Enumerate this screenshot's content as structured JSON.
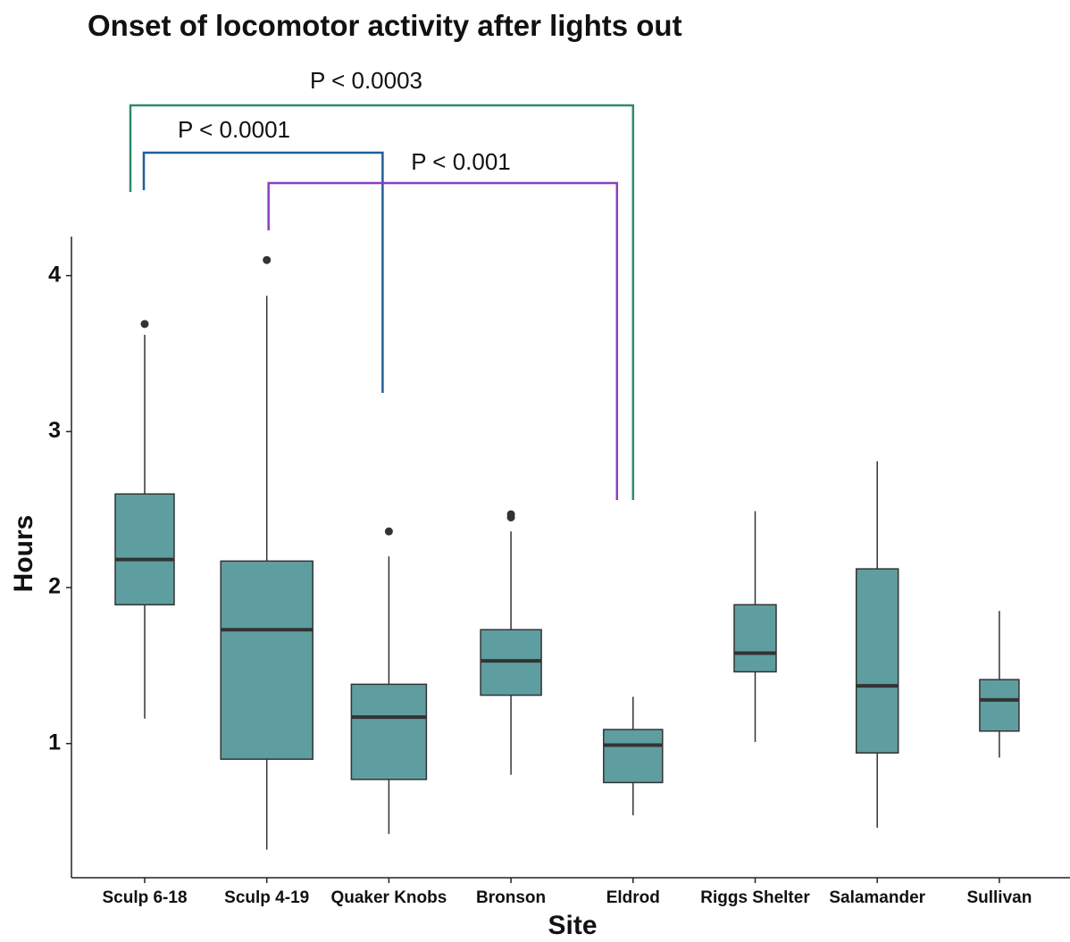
{
  "chart_data": {
    "type": "box",
    "title": "Onset of locomotor activity after lights out",
    "x_label": "Site",
    "y_label": "Hours",
    "categories": [
      "Sculp 6-18",
      "Sculp 4-19",
      "Quaker Knobs",
      "Bronson",
      "Eldrod",
      "Riggs Shelter",
      "Salamander",
      "Sullivan"
    ],
    "boxes": [
      {
        "min": 1.16,
        "q1": 1.89,
        "median": 2.18,
        "q3": 2.6,
        "max": 3.62,
        "outliers": [
          3.69
        ]
      },
      {
        "min": 0.32,
        "q1": 0.9,
        "median": 1.73,
        "q3": 2.17,
        "max": 3.87,
        "outliers": [
          4.1
        ]
      },
      {
        "min": 0.42,
        "q1": 0.77,
        "median": 1.17,
        "q3": 1.38,
        "max": 2.2,
        "outliers": [
          2.36
        ]
      },
      {
        "min": 0.8,
        "q1": 1.31,
        "median": 1.53,
        "q3": 1.73,
        "max": 2.36,
        "outliers": [
          2.45,
          2.47
        ]
      },
      {
        "min": 0.54,
        "q1": 0.75,
        "median": 0.99,
        "q3": 1.09,
        "max": 1.3,
        "outliers": []
      },
      {
        "min": 1.01,
        "q1": 1.46,
        "median": 1.58,
        "q3": 1.89,
        "max": 2.49,
        "outliers": []
      },
      {
        "min": 0.46,
        "q1": 0.94,
        "median": 1.37,
        "q3": 2.12,
        "max": 2.81,
        "outliers": []
      },
      {
        "min": 0.91,
        "q1": 1.08,
        "median": 1.28,
        "q3": 1.41,
        "max": 1.85,
        "outliers": []
      }
    ],
    "color": "#5f9ea0",
    "ylim": [
      0.14,
      4.25
    ],
    "yticks": [
      1,
      2,
      3,
      4
    ],
    "grid": false,
    "brackets": [
      {
        "label": "P < 0.0003",
        "from": "Sculp 6-18",
        "to": "Eldrod",
        "color": "#2e8b6e"
      },
      {
        "label": "P < 0.0001",
        "from": "Sculp 6-18",
        "to": "Quaker Knobs",
        "color": "#1f5f9a"
      },
      {
        "label": "P < 0.001",
        "from": "Sculp 4-19",
        "to": "Eldrod",
        "color": "#8a3fc4"
      }
    ]
  }
}
